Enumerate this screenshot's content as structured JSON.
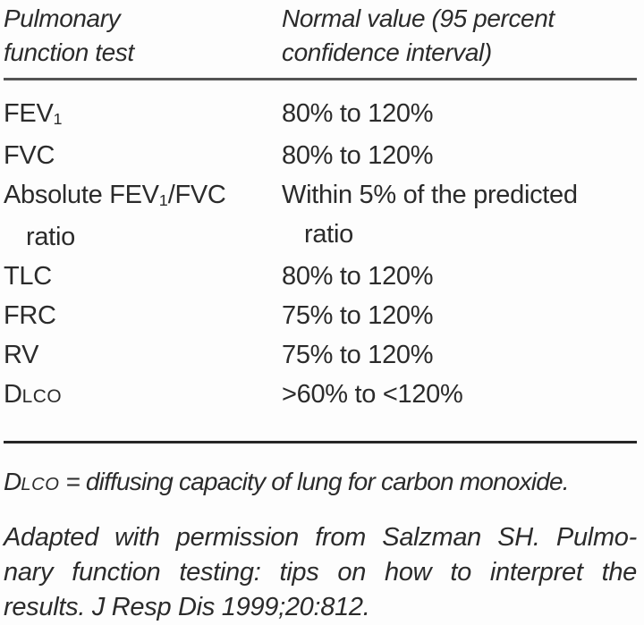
{
  "colors": {
    "background": "#fdfdfd",
    "text": "#2b2b2b",
    "header_rule": "#545454",
    "footer_rule": "#262626"
  },
  "table": {
    "header": {
      "col1_line1": "Pulmonary",
      "col1_line2": "function test",
      "col2_line1": "Normal value (95 percent",
      "col2_line2": "confidence interval)"
    },
    "rows": [
      {
        "test": {
          "pre": "FEV",
          "sub": "1"
        },
        "value": "80% to 120%"
      },
      {
        "test": {
          "pre": "FVC"
        },
        "value": "80% to 120%"
      },
      {
        "test": {
          "pre": "Absolute FEV",
          "sub": "1",
          "post": "/FVC"
        },
        "test_line2": "ratio",
        "value": "Within 5% of the predicted",
        "value_line2": "ratio"
      },
      {
        "test": {
          "pre": "TLC"
        },
        "value": "80% to 120%"
      },
      {
        "test": {
          "pre": "FRC"
        },
        "value": "75% to 120%"
      },
      {
        "test": {
          "pre": "RV"
        },
        "value": "75% to 120%"
      },
      {
        "test": {
          "pre": "D",
          "smallcaps": "LCO"
        },
        "value": ">60% to <120%"
      }
    ]
  },
  "footnotes": {
    "abbreviation": {
      "pre": "D",
      "smallcaps": "LCO",
      "rest": " = diffusing capacity of lung for carbon monoxide."
    },
    "attribution_lines": [
      "Adapted with permission from Salzman SH. Pulmo-",
      "nary function testing: tips on how to interpret the",
      "results. J Resp Dis 1999;20:812."
    ]
  }
}
